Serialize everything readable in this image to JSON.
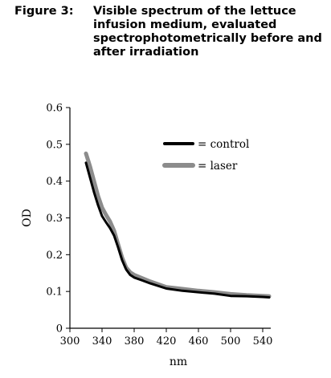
{
  "figure": {
    "label": "Figure 3:",
    "caption": "Visible spectrum of the lettuce infusion medium, evaluated spectrophotometrically before and after irradiation"
  },
  "chart_data": {
    "type": "line",
    "xlabel": "nm",
    "ylabel": "OD",
    "xlim": [
      300,
      550
    ],
    "ylim": [
      0,
      0.6
    ],
    "xticks": [
      300,
      340,
      380,
      420,
      460,
      500,
      540
    ],
    "yticks": [
      0,
      0.1,
      0.2,
      0.3,
      0.4,
      0.5,
      0.6
    ],
    "xtick_labels": [
      "300",
      "340",
      "380",
      "420",
      "460",
      "500",
      "540"
    ],
    "ytick_labels": [
      "0",
      "0.1",
      "0.2",
      "0.3",
      "0.4",
      "0.5",
      "0.6"
    ],
    "legend_position": "top-right",
    "series": [
      {
        "name": "= control",
        "color": "#000000",
        "x": [
          320,
          325,
          330,
          335,
          340,
          345,
          350,
          355,
          360,
          365,
          370,
          375,
          380,
          390,
          400,
          420,
          440,
          460,
          480,
          500,
          520,
          540,
          548
        ],
        "y": [
          0.45,
          0.41,
          0.37,
          0.335,
          0.305,
          0.288,
          0.272,
          0.252,
          0.22,
          0.185,
          0.16,
          0.145,
          0.138,
          0.13,
          0.122,
          0.108,
          0.102,
          0.098,
          0.094,
          0.088,
          0.087,
          0.085,
          0.084
        ]
      },
      {
        "name": "= laser",
        "color": "#8c8c8c",
        "x": [
          320,
          325,
          330,
          335,
          340,
          345,
          350,
          355,
          360,
          365,
          370,
          375,
          380,
          390,
          400,
          420,
          440,
          460,
          480,
          500,
          520,
          540,
          548
        ],
        "y": [
          0.475,
          0.44,
          0.4,
          0.36,
          0.328,
          0.308,
          0.29,
          0.265,
          0.228,
          0.192,
          0.165,
          0.152,
          0.145,
          0.136,
          0.127,
          0.112,
          0.107,
          0.102,
          0.098,
          0.093,
          0.09,
          0.088,
          0.087
        ]
      }
    ]
  }
}
